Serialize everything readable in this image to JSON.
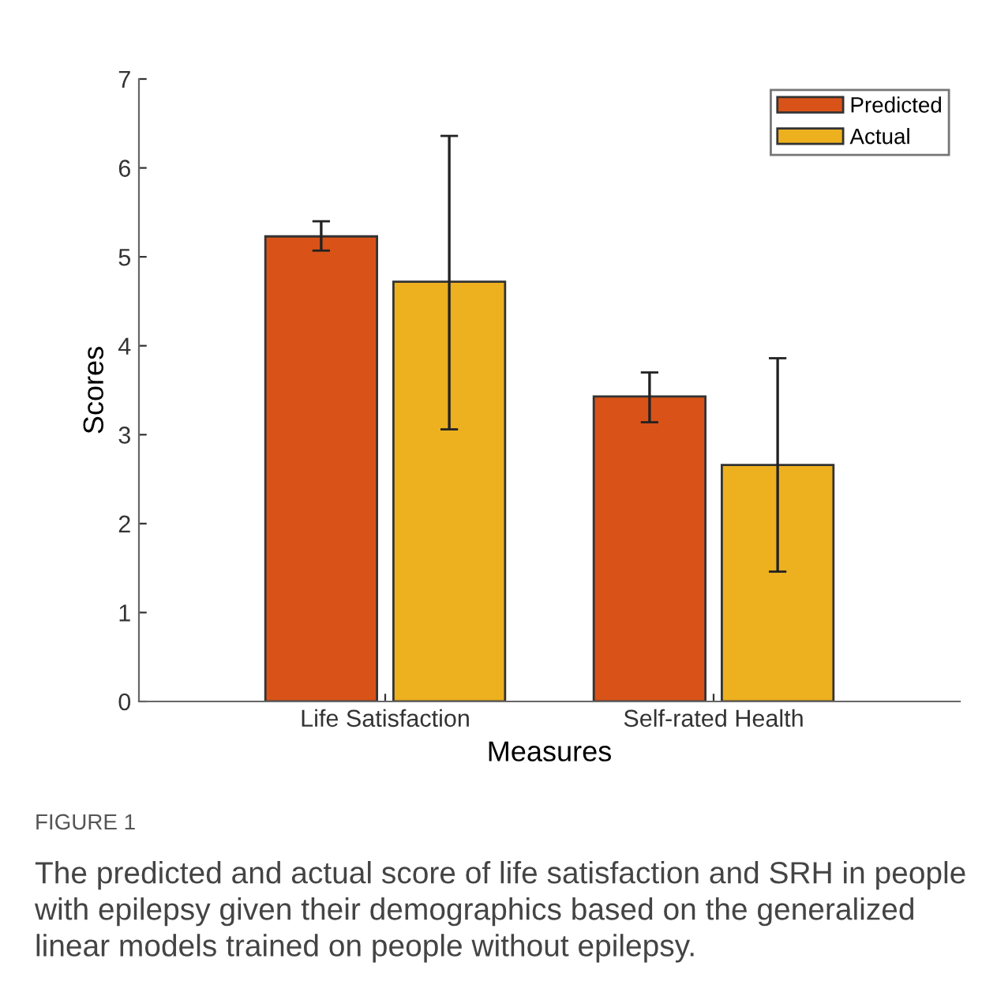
{
  "chart_data": {
    "type": "bar",
    "xlabel": "Measures",
    "ylabel": "Scores",
    "categories": [
      "Life Satisfaction",
      "Self-rated Health"
    ],
    "series": [
      {
        "name": "Predicted",
        "color": "#d95319",
        "values": [
          5.23,
          3.43
        ],
        "errors": [
          [
            5.07,
            5.4
          ],
          [
            3.14,
            3.7
          ]
        ]
      },
      {
        "name": "Actual",
        "color": "#edb120",
        "values": [
          4.72,
          2.66
        ],
        "errors": [
          [
            3.06,
            6.36
          ],
          [
            1.46,
            3.86
          ]
        ]
      }
    ],
    "ylim": [
      0,
      7
    ],
    "yticks": [
      0,
      1,
      2,
      3,
      4,
      5,
      6,
      7
    ],
    "grid": false,
    "legend": "top right",
    "annotations": [
      "FIGURE 1",
      "The predicted and actual score of life satisfaction and SRH in people with epilepsy given their demographics based on the generalized linear models trained on people without epilepsy."
    ]
  }
}
